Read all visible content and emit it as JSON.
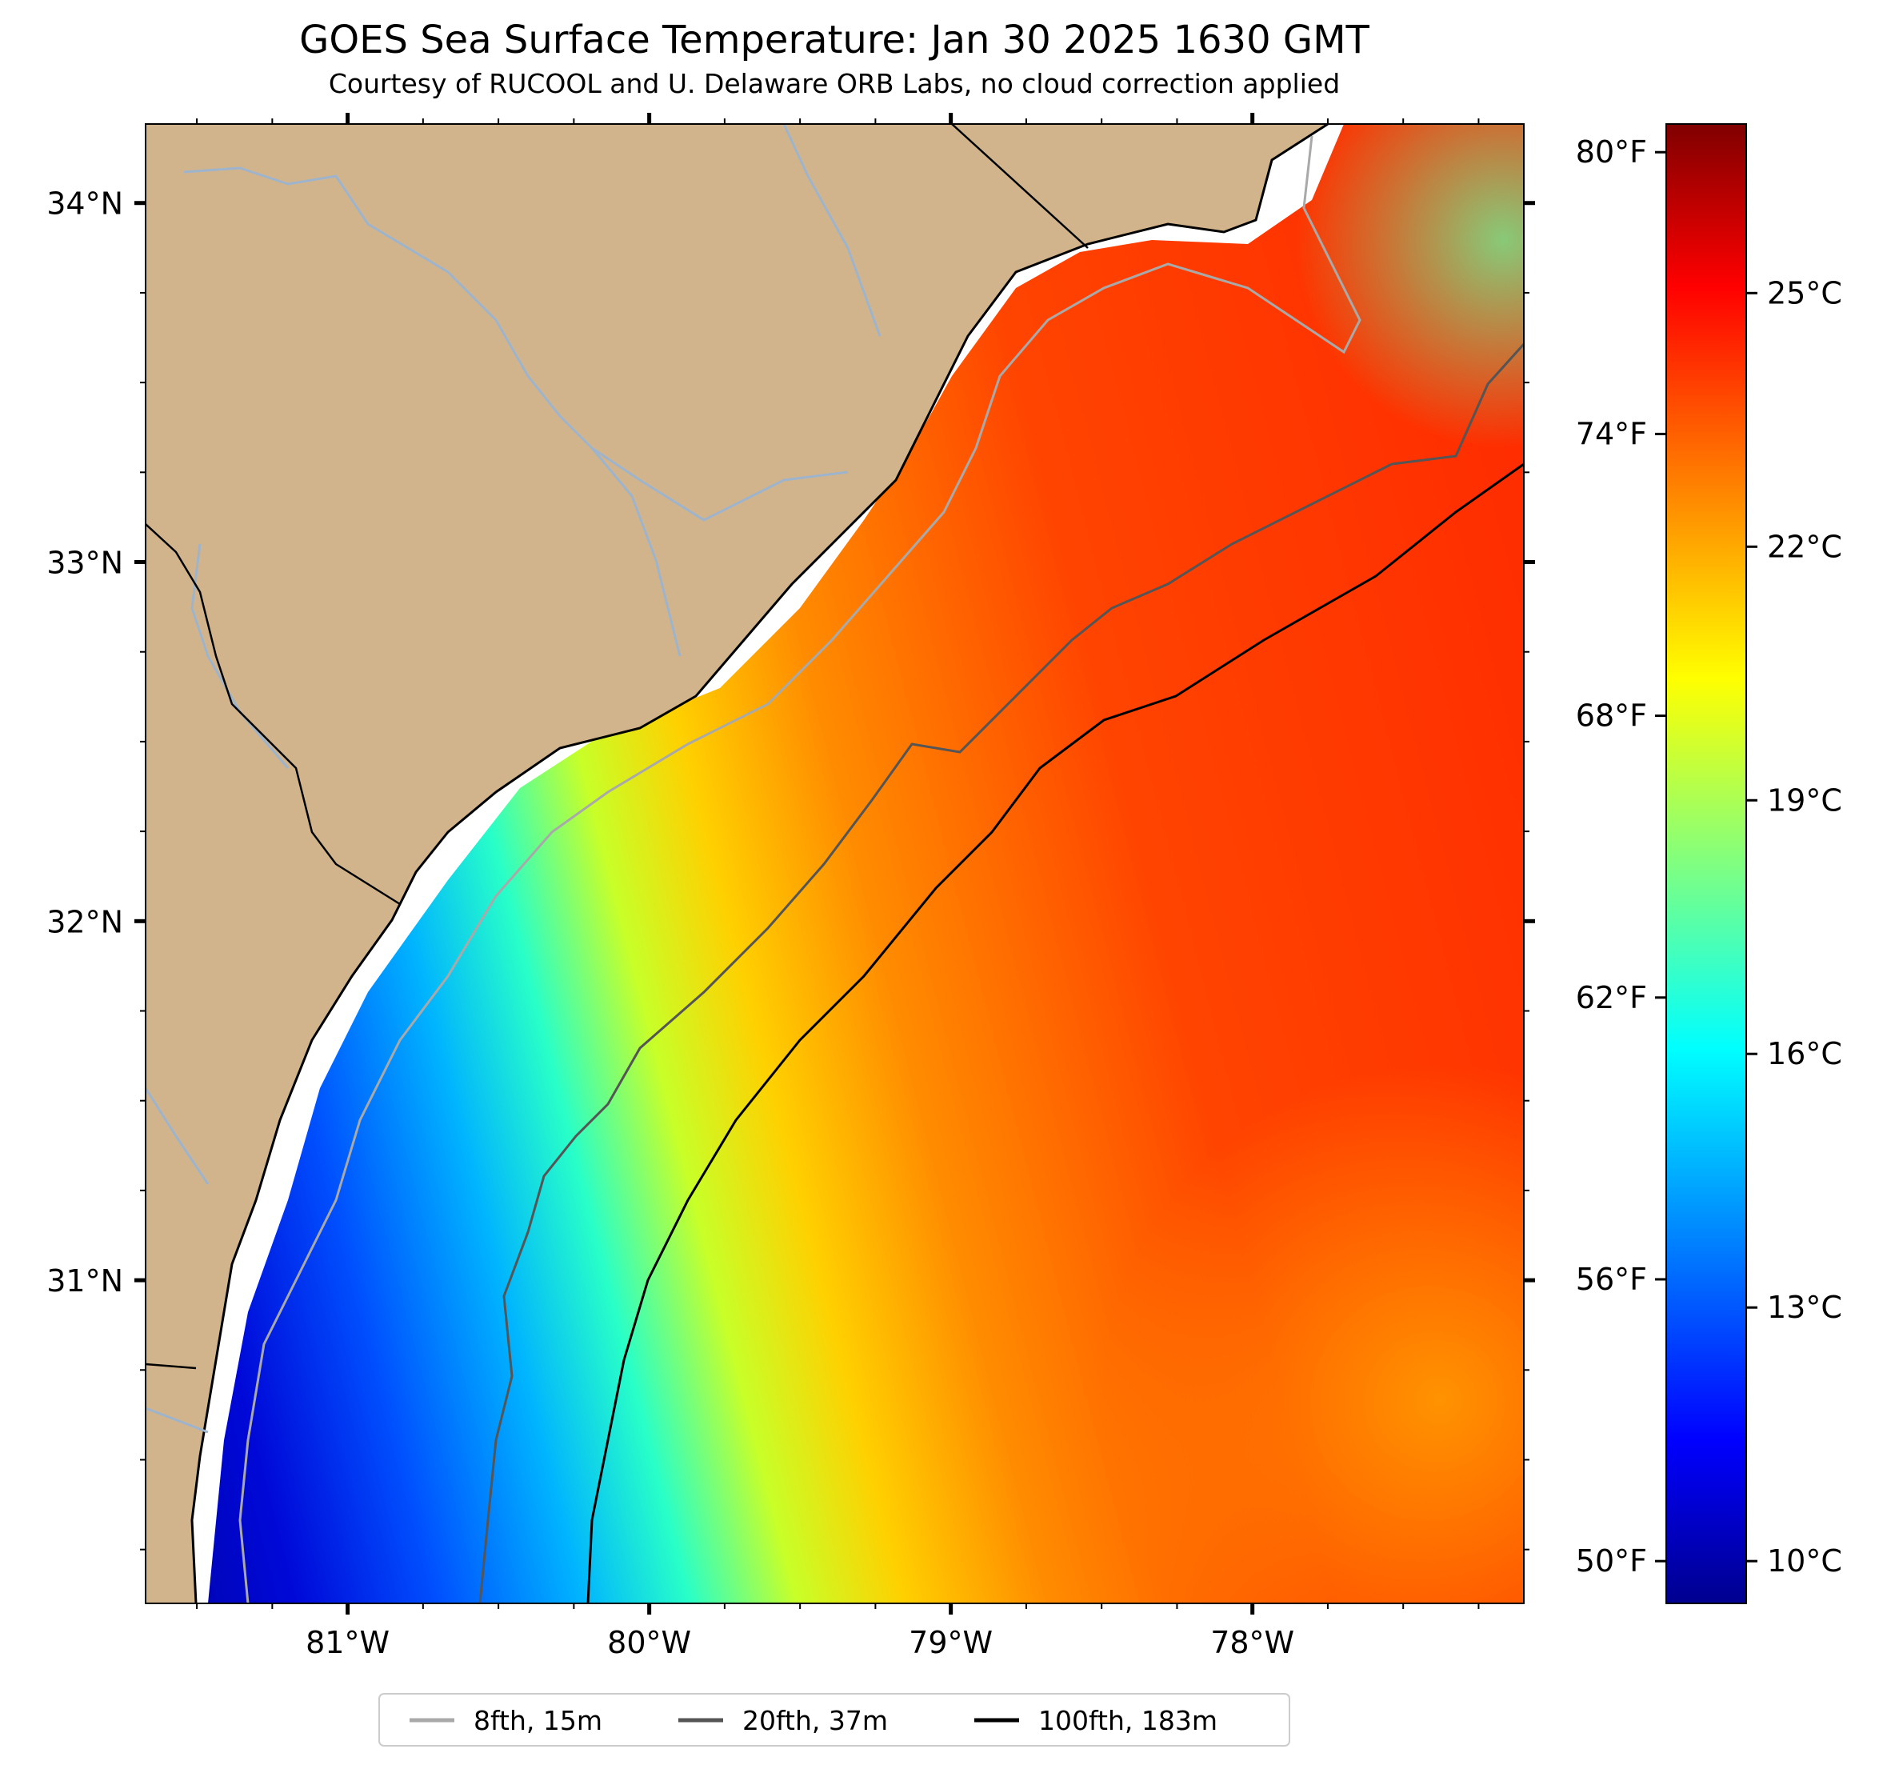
{
  "title": "GOES Sea Surface Temperature: Jan 30 2025 1630 GMT",
  "subtitle": "Courtesy of RUCOOL and U. Delaware ORB Labs, no cloud correction applied",
  "map": {
    "lon_range": [
      -81.67,
      -77.1
    ],
    "lat_range": [
      30.1,
      34.22
    ],
    "lon_ticks": [
      {
        "value": -81,
        "label": "81°W"
      },
      {
        "value": -80,
        "label": "80°W"
      },
      {
        "value": -79,
        "label": "79°W"
      },
      {
        "value": -78,
        "label": "78°W"
      }
    ],
    "lat_ticks": [
      {
        "value": 34,
        "label": "34°N"
      },
      {
        "value": 33,
        "label": "33°N"
      },
      {
        "value": 32,
        "label": "32°N"
      },
      {
        "value": 31,
        "label": "31°N"
      }
    ],
    "colors": {
      "land": "#d2b48c",
      "rivers": "#9db4cc",
      "coast": "#000000",
      "contour_8fth": "#a9a9a9",
      "contour_20fth": "#555555",
      "contour_100fth": "#000000"
    }
  },
  "colorbar": {
    "range_c": [
      9.5,
      27.0
    ],
    "celsius_ticks": [
      {
        "value": 10,
        "label": "10°C"
      },
      {
        "value": 13,
        "label": "13°C"
      },
      {
        "value": 16,
        "label": "16°C"
      },
      {
        "value": 19,
        "label": "19°C"
      },
      {
        "value": 22,
        "label": "22°C"
      },
      {
        "value": 25,
        "label": "25°C"
      }
    ],
    "fahrenheit_ticks": [
      {
        "value": 50,
        "label": "50°F"
      },
      {
        "value": 56,
        "label": "56°F"
      },
      {
        "value": 62,
        "label": "62°F"
      },
      {
        "value": 68,
        "label": "68°F"
      },
      {
        "value": 74,
        "label": "74°F"
      },
      {
        "value": 80,
        "label": "80°F"
      }
    ]
  },
  "legend": [
    {
      "label": "8fth, 15m",
      "color": "#a9a9a9"
    },
    {
      "label": "20fth, 37m",
      "color": "#555555"
    },
    {
      "label": "100fth, 183m",
      "color": "#000000"
    }
  ]
}
